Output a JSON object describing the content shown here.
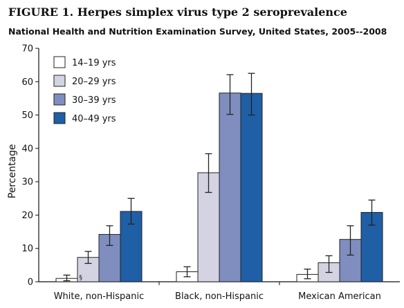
{
  "title": "FIGURE 1. Herpes simplex virus type 2 seroprevalence",
  "subtitle": "National Health and Nutrition Examination Survey, United States, 2005--2008",
  "chart_data": {
    "type": "bar",
    "title": "FIGURE 1. Herpes simplex virus type 2 seroprevalence",
    "subtitle": "National Health and Nutrition Examination Survey, United States, 2005--2008",
    "xlabel": "",
    "ylabel": "Percentage",
    "ylim": [
      0,
      70
    ],
    "yticks": [
      "0",
      "10",
      "20",
      "30",
      "40",
      "50",
      "60",
      "70"
    ],
    "grid": false,
    "legend_position": "top-left",
    "categories": [
      "White, non-Hispanic",
      "Black, non-Hispanic",
      "Mexican American"
    ],
    "series": [
      {
        "name": "14–19 yrs",
        "color": "#ffffff",
        "values": [
          1.0,
          3.0,
          2.2
        ],
        "error_low": [
          0.3,
          1.5,
          0.9
        ],
        "error_high": [
          2.0,
          4.5,
          3.8
        ]
      },
      {
        "name": "20–29 yrs",
        "color": "#d3d3e3",
        "values": [
          7.3,
          32.7,
          5.7
        ],
        "error_low": [
          5.5,
          26.8,
          2.8
        ],
        "error_high": [
          9.1,
          38.4,
          7.8
        ]
      },
      {
        "name": "30–39 yrs",
        "color": "#7f8ebf",
        "values": [
          14.2,
          56.6,
          12.7
        ],
        "error_low": [
          10.9,
          50.2,
          8.0
        ],
        "error_high": [
          16.8,
          62.1,
          16.8
        ]
      },
      {
        "name": "40–49 yrs",
        "color": "#1f5fa5",
        "values": [
          21.1,
          56.5,
          20.8
        ],
        "error_low": [
          17.3,
          50.0,
          17.0
        ],
        "error_high": [
          25.0,
          62.5,
          24.5
        ]
      }
    ],
    "annotations": [
      {
        "text": "§",
        "category": "White, non-Hispanic",
        "series": "14–19 yrs"
      }
    ]
  }
}
